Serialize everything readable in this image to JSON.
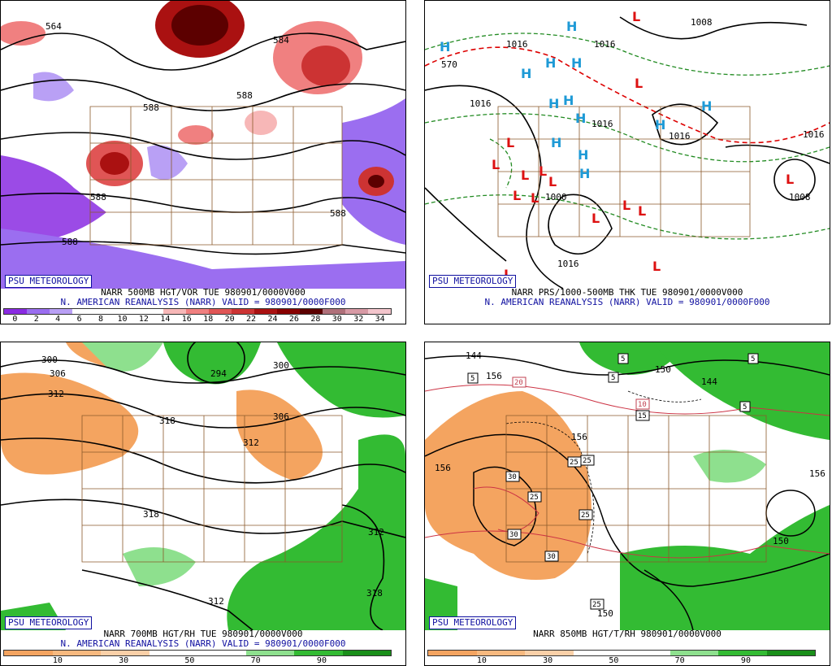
{
  "panels": [
    {
      "badge": "PSU METEOROLOGY",
      "caption_line1": "NARR 500MB HGT/VOR TUE 980901/0000V000",
      "caption_line2": "N. AMERICAN REANALYSIS (NARR) VALID = 980901/0000F000",
      "contour_labels": [
        "564",
        "588",
        "588",
        "588",
        "588",
        "584",
        "588"
      ],
      "colorbar_colors": [
        "#8a2be2",
        "#9b6ef0",
        "#b9a0f5",
        "#ffffff",
        "#ffffff",
        "#ffffff",
        "#ffffff",
        "#f7b7b7",
        "#f08080",
        "#e05555",
        "#cc3333",
        "#aa1111",
        "#880000",
        "#5c0000",
        "#b0707a",
        "#d89aa5",
        "#f3c5cc"
      ],
      "colorbar_labels": [
        "0",
        "2",
        "4",
        "6",
        "8",
        "10",
        "12",
        "14",
        "16",
        "18",
        "20",
        "22",
        "24",
        "26",
        "28",
        "30",
        "32",
        "34"
      ]
    },
    {
      "badge": "PSU METEOROLOGY",
      "caption_line1": "NARR PRS/1000-500MB THK TUE 980901/0000V000",
      "caption_line2": "N. AMERICAN REANALYSIS (NARR) VALID = 980901/0000F000",
      "contour_labels": [
        "1016",
        "1016",
        "1008",
        "1016",
        "1016",
        "1008",
        "1016",
        "1000",
        "1016",
        "570",
        "1016"
      ],
      "h_symbol": "H",
      "l_symbol": "L"
    },
    {
      "badge": "PSU METEOROLOGY",
      "caption_line1": "NARR 700MB HGT/RH TUE 980901/0000V000",
      "caption_line2": "N. AMERICAN REANALYSIS (NARR) VALID = 980901/0000F000",
      "contour_labels": [
        "300",
        "306",
        "312",
        "318",
        "294",
        "300",
        "306",
        "312",
        "318",
        "312",
        "318",
        "312"
      ],
      "colorbar_colors": [
        "#f4a460",
        "#f7b97f",
        "#fad0a8",
        "#ffffff",
        "#ffffff",
        "#8ee08e",
        "#33bb33",
        "#1a8f1a"
      ],
      "colorbar_labels": [
        "10",
        "30",
        "50",
        "70",
        "90"
      ]
    },
    {
      "badge": "PSU METEOROLOGY",
      "caption_line1": "NARR 850MB HGT/T/RH 980901/0000V000",
      "caption_line2": "",
      "contour_labels": [
        "144",
        "156",
        "156",
        "144",
        "156",
        "150",
        "156",
        "150",
        "150"
      ],
      "box_labels": [
        "5",
        "5",
        "5",
        "5",
        "20",
        "10",
        "15",
        "25",
        "25",
        "30",
        "25",
        "25",
        "30",
        "30",
        "25",
        "5"
      ],
      "colorbar_colors": [
        "#f4a460",
        "#f7b97f",
        "#fad0a8",
        "#ffffff",
        "#ffffff",
        "#8ee08e",
        "#33bb33",
        "#1a8f1a"
      ],
      "colorbar_labels": [
        "10",
        "30",
        "50",
        "70",
        "90"
      ]
    }
  ]
}
